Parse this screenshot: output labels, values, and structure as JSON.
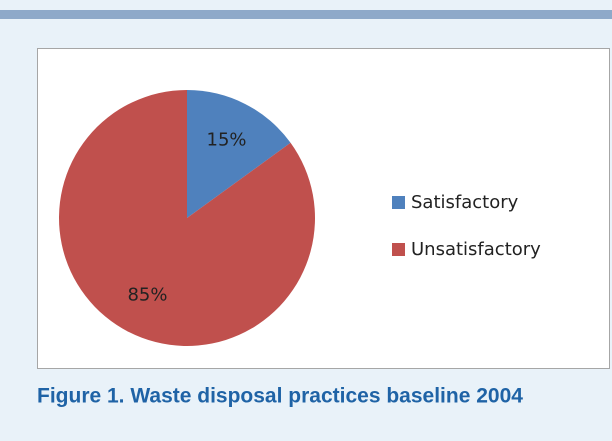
{
  "chart_data": {
    "type": "pie",
    "categories": [
      "Satisfactory",
      "Unsatisfactory"
    ],
    "values": [
      15,
      85
    ],
    "value_labels": [
      "15%",
      "85%"
    ],
    "colors": [
      "#4f81bd",
      "#c0504d"
    ],
    "legend": "right"
  },
  "caption": "Figure 1. Waste disposal practices baseline 2004"
}
